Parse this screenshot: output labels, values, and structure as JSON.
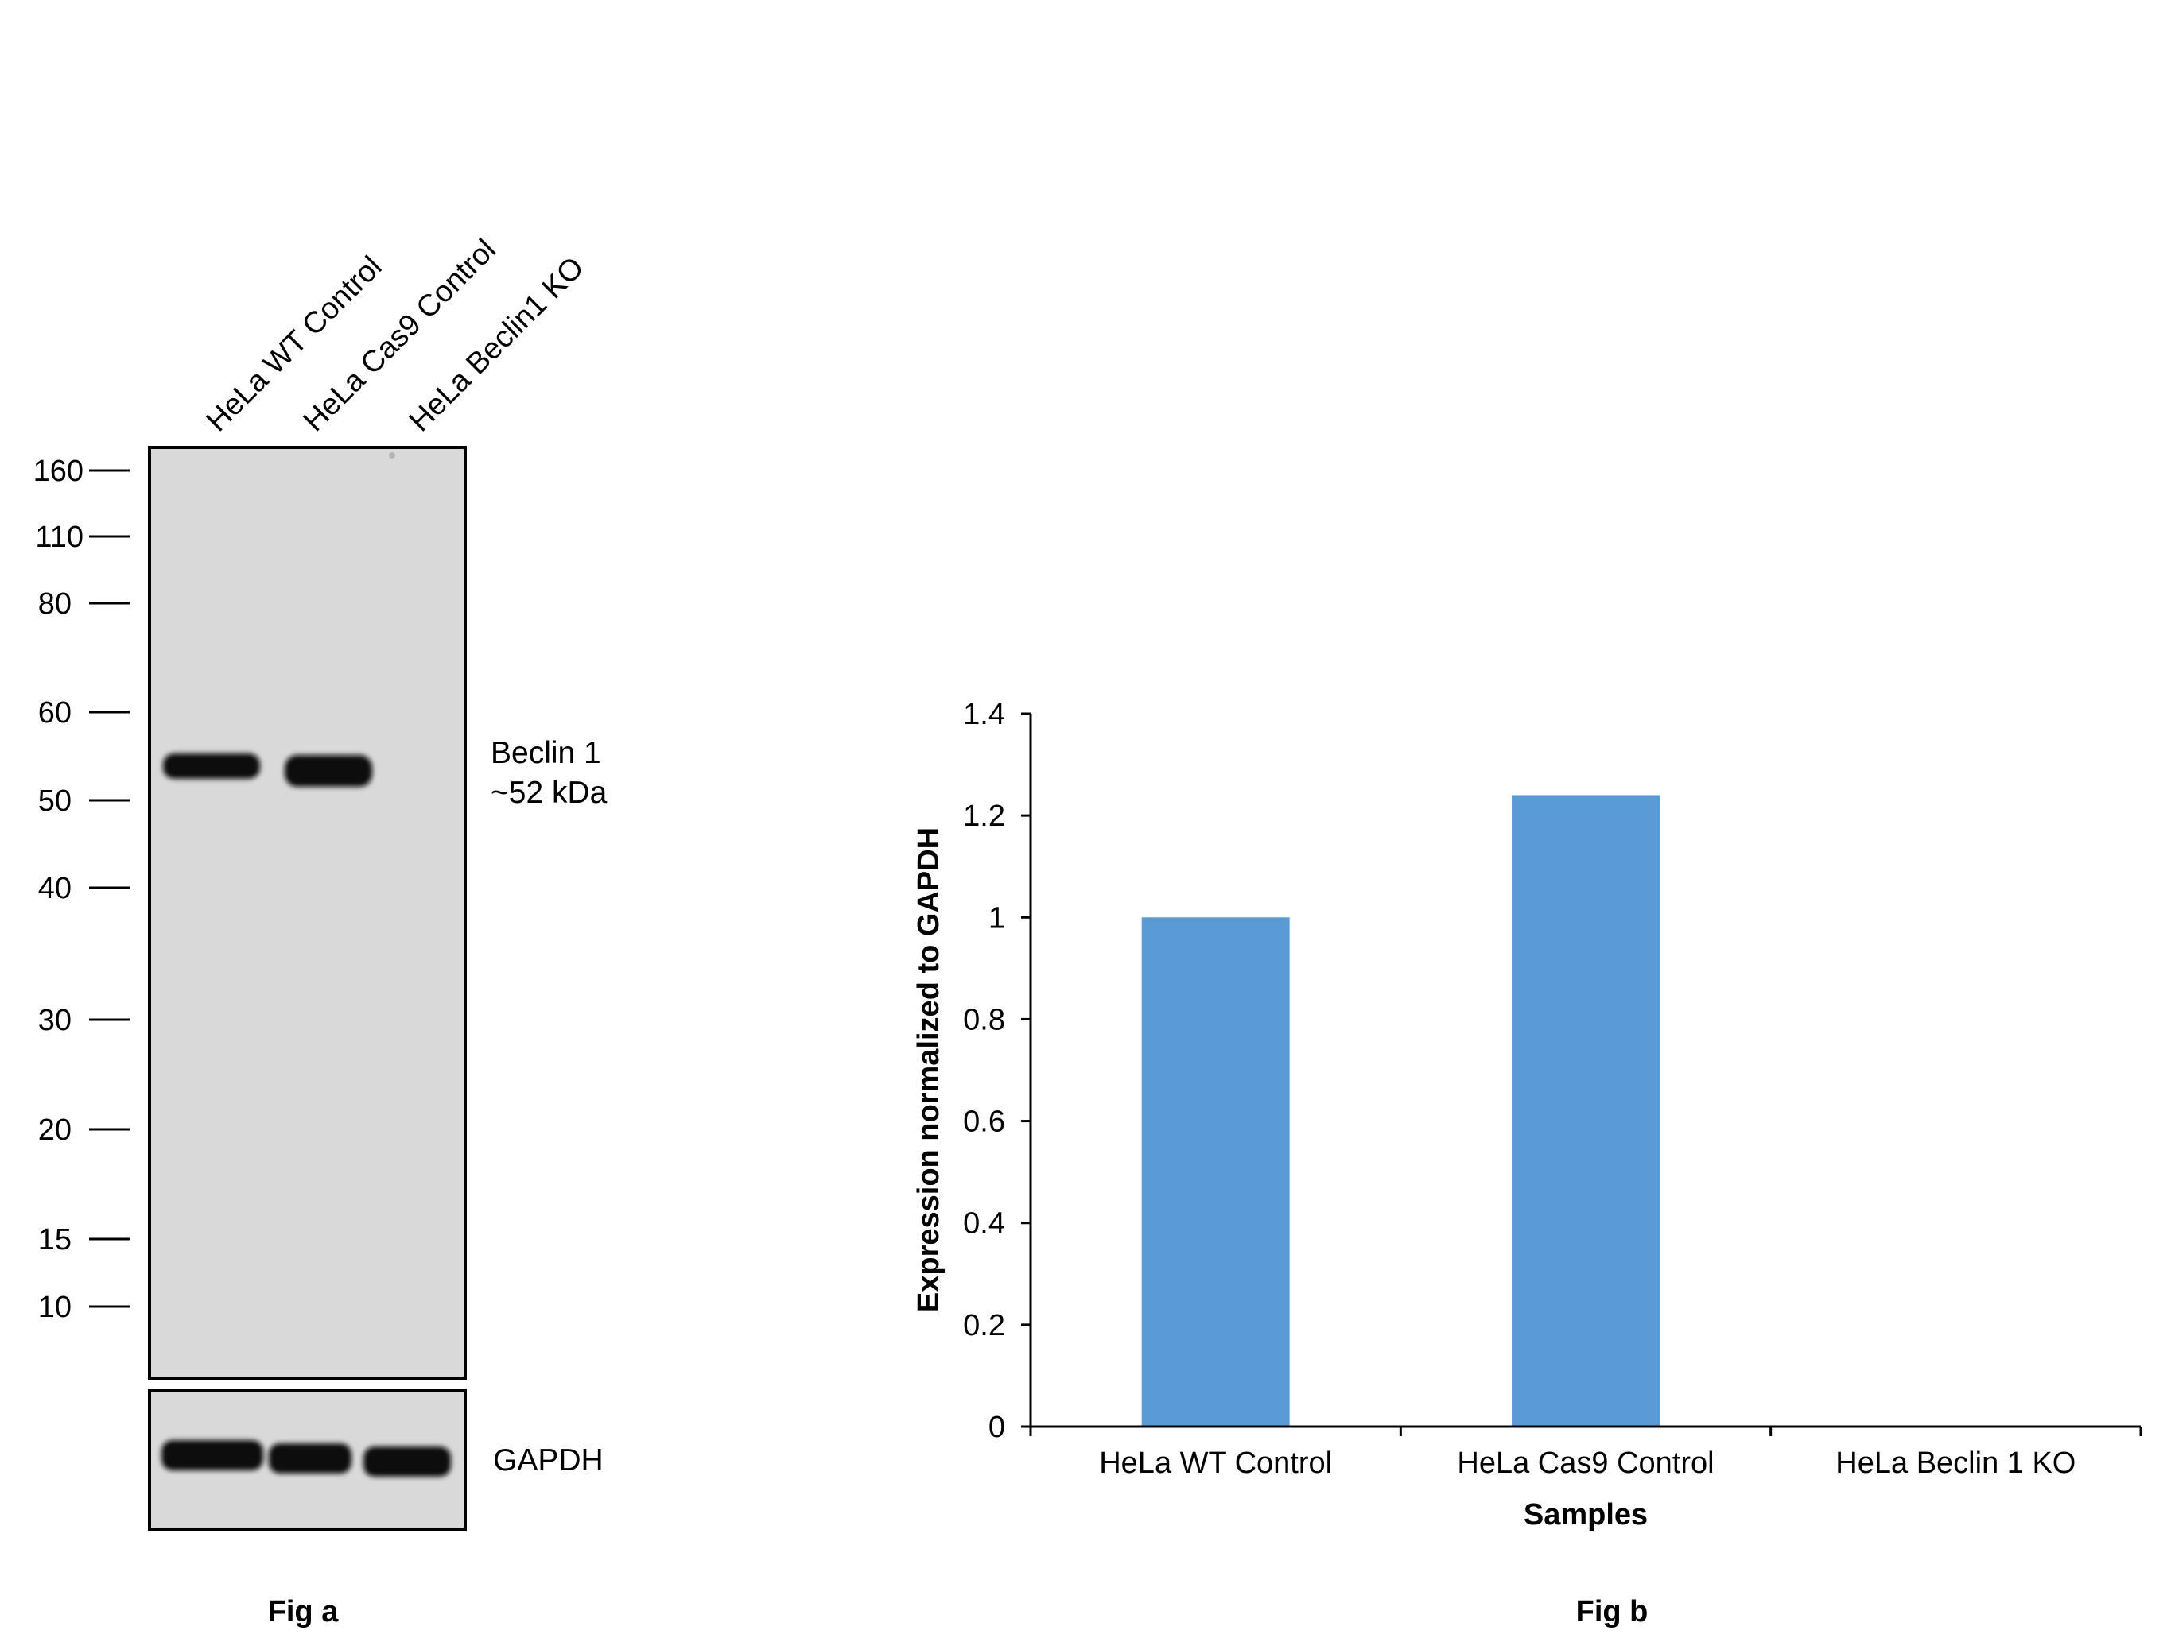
{
  "fig_a": {
    "caption": "Fig a",
    "lanes": [
      "HeLa WT Control",
      "HeLa Cas9 Control",
      "HeLa Beclin1 KO"
    ],
    "mw_markers": [
      "160",
      "110",
      "80",
      "60",
      "50",
      "40",
      "30",
      "20",
      "15",
      "10"
    ],
    "target_label_line1": "Beclin 1",
    "target_label_line2": "~52 kDa",
    "loading_control_label": "GAPDH",
    "band_colors": {
      "membrane": "#d9d9d9",
      "band": "#0d0d0d"
    }
  },
  "fig_b": {
    "caption": "Fig b"
  },
  "chart_data": {
    "type": "bar",
    "categories": [
      "HeLa WT Control",
      "HeLa Cas9 Control",
      "HeLa Beclin 1 KO"
    ],
    "values": [
      1.0,
      1.24,
      0.0
    ],
    "ylabel": "Expression normalized to GAPDH",
    "xlabel": "Samples",
    "ylim": [
      0,
      1.4
    ],
    "yticks": [
      "0",
      "0.2",
      "0.4",
      "0.6",
      "0.8",
      "1",
      "1.2",
      "1.4"
    ],
    "bar_color": "#5b9bd5",
    "grid": false,
    "legend": "none"
  }
}
